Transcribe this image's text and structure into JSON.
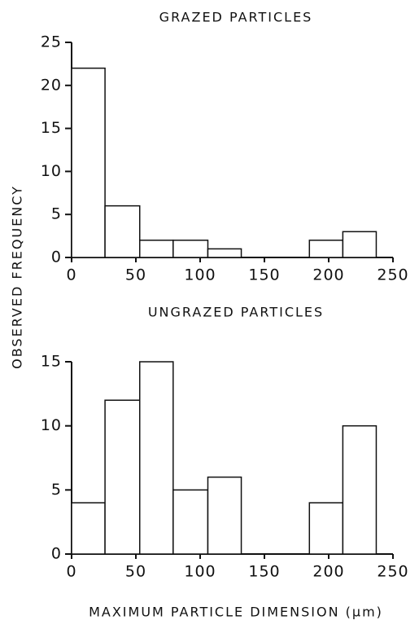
{
  "chart_data": [
    {
      "type": "histogram",
      "title": "GRAZED PARTICLES",
      "ylabel": "OBSERVED FREQUENCY",
      "bins": [
        0,
        26,
        53,
        79,
        106,
        132,
        158,
        185,
        211,
        237
      ],
      "values": [
        22,
        6,
        2,
        2,
        1,
        0,
        0,
        2,
        3
      ],
      "xlim": [
        0,
        250
      ],
      "xticks": [
        0,
        50,
        100,
        150,
        200,
        250
      ],
      "ylim": [
        0,
        25
      ],
      "yticks": [
        0,
        5,
        10,
        15,
        20,
        25
      ],
      "color": "#ffffff"
    },
    {
      "type": "histogram",
      "title": "UNGRAZED PARTICLES",
      "xlabel": "MAXIMUM PARTICLE DIMENSION (μm)",
      "bins": [
        0,
        26,
        53,
        79,
        106,
        132,
        158,
        185,
        211,
        237
      ],
      "values": [
        4,
        12,
        15,
        5,
        6,
        0,
        0,
        4,
        10
      ],
      "xlim": [
        0,
        250
      ],
      "xticks": [
        0,
        50,
        100,
        150,
        200,
        250
      ],
      "ylim": [
        0,
        15
      ],
      "yticks": [
        0,
        5,
        10,
        15
      ],
      "color": "#ffffff"
    }
  ]
}
